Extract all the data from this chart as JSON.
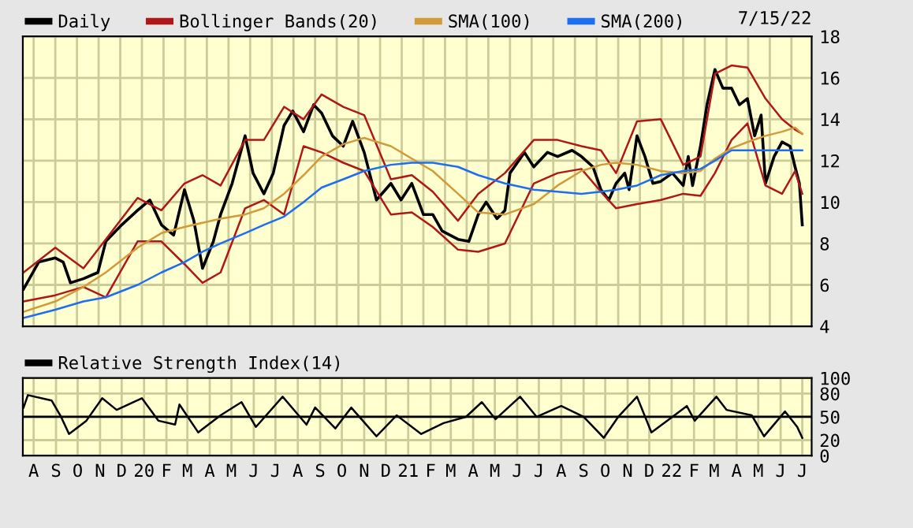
{
  "chart_data": [
    {
      "type": "line",
      "legend": "top",
      "grid": true,
      "tick_labels": "y",
      "annotations": [
        "7/15/22"
      ],
      "xlim": [
        "2019-07-31",
        "2022-07-28"
      ],
      "ylim": [
        4,
        18
      ],
      "yticks": [
        4,
        6,
        8,
        10,
        12,
        14,
        16,
        18
      ],
      "series": [
        {
          "name": "Daily",
          "color": "#000000",
          "x": [
            "2019-08-01",
            "2019-08-22",
            "2019-09-14",
            "2019-09-25",
            "2019-10-05",
            "2019-10-23",
            "2019-11-12",
            "2019-11-23",
            "2019-12-15",
            "2020-01-06",
            "2020-01-23",
            "2020-02-08",
            "2020-02-25",
            "2020-03-11",
            "2020-03-24",
            "2020-04-05",
            "2020-04-20",
            "2020-04-30",
            "2020-05-16",
            "2020-06-03",
            "2020-06-14",
            "2020-06-29",
            "2020-07-12",
            "2020-07-27",
            "2020-08-08",
            "2020-08-23",
            "2020-09-06",
            "2020-09-17",
            "2020-10-02",
            "2020-10-17",
            "2020-10-30",
            "2020-11-15",
            "2020-12-02",
            "2020-12-22",
            "2021-01-05",
            "2021-01-20",
            "2021-02-05",
            "2021-02-18",
            "2021-03-03",
            "2021-03-25",
            "2021-04-09",
            "2021-04-22",
            "2021-05-03",
            "2021-05-18",
            "2021-05-29",
            "2021-06-05",
            "2021-06-25",
            "2021-07-08",
            "2021-07-27",
            "2021-08-10",
            "2021-08-30",
            "2021-09-12",
            "2021-09-28",
            "2021-10-09",
            "2021-10-20",
            "2021-10-30",
            "2021-11-11",
            "2021-11-17",
            "2021-11-28",
            "2021-12-09",
            "2021-12-20",
            "2021-12-31",
            "2022-01-16",
            "2022-01-31",
            "2022-02-07",
            "2022-02-13",
            "2022-02-24",
            "2022-03-05",
            "2022-03-16",
            "2022-03-27",
            "2022-04-08",
            "2022-04-19",
            "2022-04-30",
            "2022-05-10",
            "2022-05-19",
            "2022-05-25",
            "2022-06-06",
            "2022-06-17",
            "2022-06-28",
            "2022-07-05",
            "2022-07-11",
            "2022-07-15"
          ],
          "values": [
            5.8,
            7.1,
            7.3,
            7.1,
            6.1,
            6.3,
            6.6,
            8.1,
            8.9,
            9.6,
            10.1,
            8.9,
            8.4,
            10.6,
            9.1,
            6.8,
            8.1,
            9.4,
            10.9,
            13.2,
            11.4,
            10.4,
            11.4,
            13.7,
            14.4,
            13.4,
            14.7,
            14.3,
            13.2,
            12.7,
            13.9,
            12.4,
            10.1,
            10.9,
            10.1,
            10.9,
            9.4,
            9.4,
            8.6,
            8.2,
            8.1,
            9.4,
            10.0,
            9.2,
            9.6,
            11.4,
            12.4,
            11.7,
            12.4,
            12.2,
            12.5,
            12.2,
            11.7,
            10.6,
            10.1,
            10.9,
            11.4,
            10.6,
            13.2,
            12.2,
            10.9,
            11.0,
            11.4,
            10.8,
            12.2,
            10.8,
            12.7,
            14.7,
            16.4,
            15.5,
            15.5,
            14.7,
            15.0,
            13.2,
            14.2,
            10.9,
            12.2,
            12.9,
            12.7,
            11.7,
            10.9,
            8.9
          ]
        },
        {
          "name": "Bollinger Bands(20)",
          "color": "#b01818",
          "x": [
            "2019-08-01",
            "2019-09-14",
            "2019-10-23",
            "2019-11-23",
            "2020-01-06",
            "2020-02-08",
            "2020-03-11",
            "2020-04-05",
            "2020-04-30",
            "2020-06-03",
            "2020-06-29",
            "2020-07-27",
            "2020-08-23",
            "2020-09-17",
            "2020-10-17",
            "2020-11-15",
            "2020-12-22",
            "2021-01-20",
            "2021-02-18",
            "2021-03-25",
            "2021-04-22",
            "2021-05-29",
            "2021-07-08",
            "2021-08-10",
            "2021-09-12",
            "2021-10-09",
            "2021-10-30",
            "2021-11-28",
            "2021-12-31",
            "2022-01-31",
            "2022-02-24",
            "2022-03-16",
            "2022-04-08",
            "2022-04-30",
            "2022-05-25",
            "2022-06-17",
            "2022-07-05",
            "2022-07-15"
          ],
          "values": [
            6.6,
            7.8,
            6.8,
            8.2,
            10.2,
            9.6,
            10.9,
            11.3,
            10.8,
            13.0,
            13.0,
            14.6,
            14.0,
            15.2,
            14.6,
            14.2,
            11.1,
            11.3,
            10.5,
            9.1,
            10.4,
            11.4,
            13.0,
            13.0,
            12.7,
            12.5,
            11.4,
            13.9,
            14.0,
            11.8,
            12.2,
            16.2,
            16.6,
            16.5,
            15.0,
            14.0,
            13.5,
            13.3
          ]
        },
        {
          "color": "#b01818",
          "x": [
            "2019-08-01",
            "2019-09-14",
            "2019-10-23",
            "2019-11-23",
            "2020-01-06",
            "2020-02-08",
            "2020-03-11",
            "2020-04-05",
            "2020-04-30",
            "2020-06-03",
            "2020-06-29",
            "2020-07-27",
            "2020-08-23",
            "2020-09-17",
            "2020-10-17",
            "2020-11-15",
            "2020-12-22",
            "2021-01-20",
            "2021-02-18",
            "2021-03-25",
            "2021-04-22",
            "2021-05-29",
            "2021-07-08",
            "2021-08-10",
            "2021-09-12",
            "2021-10-09",
            "2021-10-30",
            "2021-11-28",
            "2021-12-31",
            "2022-01-31",
            "2022-02-24",
            "2022-03-16",
            "2022-04-08",
            "2022-04-30",
            "2022-05-25",
            "2022-06-17",
            "2022-07-05",
            "2022-07-15"
          ],
          "values": [
            5.2,
            5.5,
            5.9,
            5.4,
            8.1,
            8.1,
            7.0,
            6.1,
            6.6,
            9.7,
            10.1,
            9.4,
            12.7,
            12.4,
            11.9,
            11.5,
            9.4,
            9.5,
            8.8,
            7.7,
            7.6,
            8.0,
            10.9,
            11.4,
            11.6,
            10.5,
            9.7,
            9.9,
            10.1,
            10.4,
            10.3,
            11.4,
            13.0,
            13.8,
            10.8,
            10.4,
            11.5,
            10.4
          ]
        },
        {
          "name": "SMA(100)",
          "color": "#d39a3a",
          "x": [
            "2019-08-01",
            "2019-09-14",
            "2019-10-23",
            "2019-11-23",
            "2020-01-06",
            "2020-02-08",
            "2020-03-11",
            "2020-04-05",
            "2020-04-30",
            "2020-06-03",
            "2020-06-29",
            "2020-07-27",
            "2020-08-23",
            "2020-09-17",
            "2020-10-17",
            "2020-11-15",
            "2020-12-22",
            "2021-01-20",
            "2021-02-18",
            "2021-03-25",
            "2021-04-22",
            "2021-05-29",
            "2021-07-08",
            "2021-08-10",
            "2021-09-12",
            "2021-10-09",
            "2021-10-30",
            "2021-11-28",
            "2021-12-31",
            "2022-01-31",
            "2022-02-24",
            "2022-03-16",
            "2022-04-08",
            "2022-04-30",
            "2022-05-25",
            "2022-06-17",
            "2022-07-05",
            "2022-07-15"
          ],
          "values": [
            4.7,
            5.2,
            5.9,
            6.6,
            7.8,
            8.5,
            8.8,
            9.0,
            9.2,
            9.4,
            9.7,
            10.4,
            11.3,
            12.2,
            12.8,
            13.1,
            12.7,
            12.1,
            11.5,
            10.4,
            9.5,
            9.4,
            9.9,
            10.8,
            11.5,
            11.8,
            11.9,
            11.8,
            11.5,
            11.4,
            11.5,
            12.1,
            12.6,
            12.9,
            13.2,
            13.4,
            13.6,
            13.3
          ]
        },
        {
          "name": "SMA(200)",
          "color": "#1e6ef0",
          "x": [
            "2019-08-01",
            "2019-09-14",
            "2019-10-23",
            "2019-11-23",
            "2020-01-06",
            "2020-02-08",
            "2020-03-11",
            "2020-04-05",
            "2020-04-30",
            "2020-06-03",
            "2020-06-29",
            "2020-07-27",
            "2020-08-23",
            "2020-09-17",
            "2020-10-17",
            "2020-11-15",
            "2020-12-22",
            "2021-01-20",
            "2021-02-18",
            "2021-03-25",
            "2021-04-22",
            "2021-05-29",
            "2021-07-08",
            "2021-08-10",
            "2021-09-12",
            "2021-10-09",
            "2021-10-30",
            "2021-11-28",
            "2021-12-31",
            "2022-01-31",
            "2022-02-24",
            "2022-03-16",
            "2022-04-08",
            "2022-04-30",
            "2022-05-25",
            "2022-06-17",
            "2022-07-05",
            "2022-07-15"
          ],
          "values": [
            4.4,
            4.8,
            5.2,
            5.4,
            6.0,
            6.6,
            7.1,
            7.6,
            8.0,
            8.5,
            8.9,
            9.3,
            10.0,
            10.7,
            11.1,
            11.5,
            11.8,
            11.9,
            11.9,
            11.7,
            11.3,
            10.9,
            10.6,
            10.5,
            10.4,
            10.5,
            10.6,
            10.8,
            11.3,
            11.5,
            11.6,
            12.0,
            12.5,
            12.5,
            12.5,
            12.5,
            12.5,
            12.5
          ]
        }
      ]
    },
    {
      "type": "line",
      "legend": "top",
      "grid": true,
      "xlim": [
        "2019-07-31",
        "2022-07-28"
      ],
      "ylim": [
        0,
        100
      ],
      "yticks": [
        0,
        20,
        50,
        80,
        100
      ],
      "xticks": [
        {
          "value": "2019-08-15",
          "label": "A"
        },
        {
          "value": "2019-09-15",
          "label": "S"
        },
        {
          "value": "2019-10-15",
          "label": "O"
        },
        {
          "value": "2019-11-15",
          "label": "N"
        },
        {
          "value": "2019-12-15",
          "label": "D"
        },
        {
          "value": "2020-01-15",
          "label": "20"
        },
        {
          "value": "2020-02-15",
          "label": "F"
        },
        {
          "value": "2020-03-15",
          "label": "M"
        },
        {
          "value": "2020-04-15",
          "label": "A"
        },
        {
          "value": "2020-05-15",
          "label": "M"
        },
        {
          "value": "2020-06-15",
          "label": "J"
        },
        {
          "value": "2020-07-15",
          "label": "J"
        },
        {
          "value": "2020-08-15",
          "label": "A"
        },
        {
          "value": "2020-09-15",
          "label": "S"
        },
        {
          "value": "2020-10-15",
          "label": "O"
        },
        {
          "value": "2020-11-15",
          "label": "N"
        },
        {
          "value": "2020-12-15",
          "label": "D"
        },
        {
          "value": "2021-01-15",
          "label": "21"
        },
        {
          "value": "2021-02-15",
          "label": "F"
        },
        {
          "value": "2021-03-15",
          "label": "M"
        },
        {
          "value": "2021-04-15",
          "label": "A"
        },
        {
          "value": "2021-05-15",
          "label": "M"
        },
        {
          "value": "2021-06-15",
          "label": "J"
        },
        {
          "value": "2021-07-15",
          "label": "J"
        },
        {
          "value": "2021-08-15",
          "label": "A"
        },
        {
          "value": "2021-09-15",
          "label": "S"
        },
        {
          "value": "2021-10-15",
          "label": "O"
        },
        {
          "value": "2021-11-15",
          "label": "N"
        },
        {
          "value": "2021-12-15",
          "label": "D"
        },
        {
          "value": "2022-01-15",
          "label": "22"
        },
        {
          "value": "2022-02-15",
          "label": "F"
        },
        {
          "value": "2022-03-15",
          "label": "M"
        },
        {
          "value": "2022-04-15",
          "label": "A"
        },
        {
          "value": "2022-05-15",
          "label": "M"
        },
        {
          "value": "2022-06-15",
          "label": "J"
        },
        {
          "value": "2022-07-15",
          "label": "J"
        }
      ],
      "ref_lines": [
        {
          "axis": "y",
          "value": 50,
          "color": "#000000"
        }
      ],
      "series": [
        {
          "name": "Relative Strength Index(14)",
          "color": "#000000",
          "x": [
            "2019-08-01",
            "2019-08-07",
            "2019-09-09",
            "2019-09-22",
            "2019-10-03",
            "2019-10-27",
            "2019-11-18",
            "2019-12-08",
            "2020-01-12",
            "2020-02-04",
            "2020-02-27",
            "2020-03-04",
            "2020-03-30",
            "2020-04-30",
            "2020-05-29",
            "2020-06-18",
            "2020-07-25",
            "2020-08-27",
            "2020-09-08",
            "2020-10-06",
            "2020-10-28",
            "2020-12-02",
            "2020-12-30",
            "2021-02-02",
            "2021-03-05",
            "2021-04-05",
            "2021-04-27",
            "2021-05-16",
            "2021-06-19",
            "2021-07-12",
            "2021-08-15",
            "2021-09-15",
            "2021-10-13",
            "2021-11-02",
            "2021-11-28",
            "2021-12-18",
            "2022-01-16",
            "2022-02-05",
            "2022-02-16",
            "2022-03-18",
            "2022-04-01",
            "2022-05-06",
            "2022-05-23",
            "2022-06-21",
            "2022-07-08",
            "2022-07-15"
          ],
          "values": [
            62,
            78,
            71,
            50,
            28,
            45,
            74,
            59,
            74,
            45,
            40,
            66,
            30,
            52,
            69,
            37,
            76,
            40,
            62,
            35,
            62,
            25,
            52,
            28,
            42,
            50,
            69,
            47,
            76,
            50,
            64,
            50,
            23,
            50,
            76,
            30,
            50,
            64,
            45,
            76,
            59,
            52,
            25,
            57,
            37,
            23
          ]
        }
      ]
    }
  ]
}
